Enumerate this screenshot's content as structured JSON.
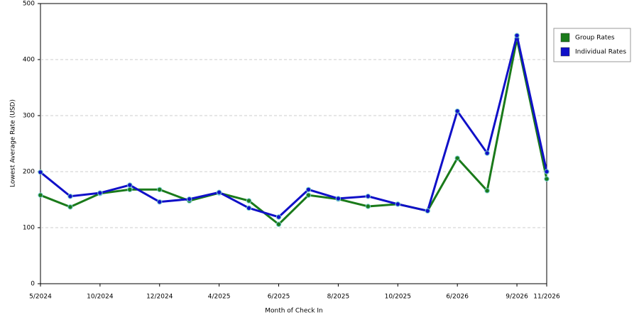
{
  "chart_data": {
    "type": "line",
    "x_label": "Month of Check In",
    "y_label": "Lowest Average Rate (USD)",
    "categories": [
      "5/2024",
      null,
      "10/2024",
      null,
      "12/2024",
      null,
      "4/2025",
      null,
      "6/2025",
      null,
      "8/2025",
      null,
      "10/2025",
      null,
      "6/2026",
      null,
      "9/2026",
      "11/2026"
    ],
    "series": [
      {
        "name": "Group Rates",
        "color": "#1a7a1a",
        "values": [
          158,
          137,
          161,
          168,
          168,
          148,
          162,
          148,
          106,
          158,
          151,
          138,
          142,
          130,
          224,
          166,
          437,
          187
        ]
      },
      {
        "name": "Individual Rates",
        "color": "#1010c8",
        "values": [
          199,
          156,
          162,
          176,
          146,
          151,
          163,
          135,
          119,
          168,
          152,
          156,
          142,
          130,
          308,
          233,
          443,
          200
        ]
      }
    ],
    "ylim": [
      0,
      500
    ],
    "yticks": [
      0,
      100,
      200,
      300,
      400,
      500
    ],
    "grid": true,
    "legend": "right"
  }
}
